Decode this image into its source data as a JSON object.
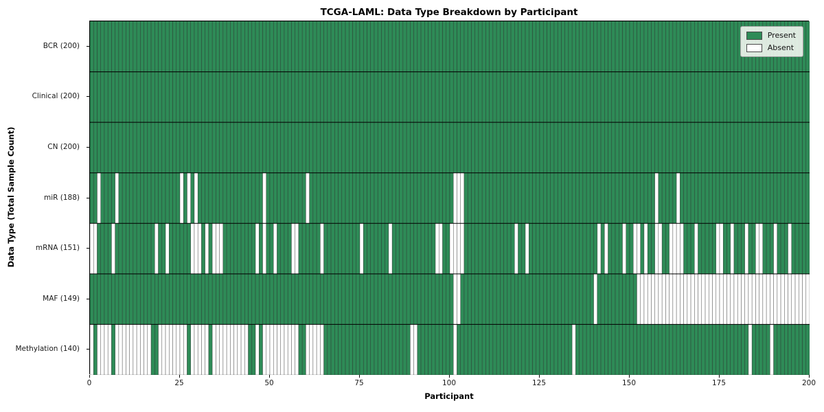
{
  "title": "TCGA-LAML: Data Type Breakdown by Participant",
  "xlabel": "Participant",
  "ylabel": "Data Type (Total Sample Count)",
  "legend": {
    "present_label": "Present",
    "absent_label": "Absent"
  },
  "colors": {
    "present": "#2e8b57",
    "absent": "#ffffff",
    "cell_border": "#2a2a2a",
    "plot_border": "#000000",
    "legend_bg": "#fbfbf5",
    "legend_border": "#a6a6a6"
  },
  "x_ticks": [
    0,
    25,
    50,
    75,
    100,
    125,
    150,
    175,
    200
  ],
  "chart_data": {
    "type": "heatmap",
    "title": "TCGA-LAML: Data Type Breakdown by Participant",
    "xlabel": "Participant",
    "ylabel": "Data Type (Total Sample Count)",
    "xlim": [
      0,
      200
    ],
    "n_participants": 200,
    "legend_position": "upper right",
    "legend_entries": [
      "Present",
      "Absent"
    ],
    "value_encoding": {
      "present": 1,
      "absent": 0
    },
    "grid": "per-cell borders",
    "rows": [
      {
        "label": "BCR (200)",
        "data_type": "BCR",
        "present_count": 200,
        "absent_participants": []
      },
      {
        "label": "Clinical (200)",
        "data_type": "Clinical",
        "present_count": 200,
        "absent_participants": []
      },
      {
        "label": "CN (200)",
        "data_type": "CN",
        "present_count": 200,
        "absent_participants": []
      },
      {
        "label": "miR (188)",
        "data_type": "miR",
        "present_count": 188,
        "absent_participants": [
          2,
          7,
          25,
          27,
          29,
          48,
          60,
          101,
          102,
          103,
          157,
          163
        ]
      },
      {
        "label": "mRNA (151)",
        "data_type": "mRNA",
        "present_count": 151,
        "absent_participants": [
          0,
          1,
          6,
          18,
          21,
          28,
          29,
          30,
          32,
          34,
          35,
          36,
          46,
          48,
          51,
          56,
          57,
          64,
          75,
          83,
          96,
          97,
          100,
          101,
          102,
          103,
          118,
          121,
          141,
          143,
          148,
          151,
          152,
          154,
          157,
          158,
          161,
          162,
          163,
          164,
          168,
          174,
          175,
          178,
          182,
          185,
          186,
          190,
          194
        ]
      },
      {
        "label": "MAF (149)",
        "data_type": "MAF",
        "present_count": 149,
        "absent_participants": [
          101,
          102,
          140,
          152,
          153,
          154,
          155,
          156,
          157,
          158,
          159,
          160,
          161,
          162,
          163,
          164,
          165,
          166,
          167,
          168,
          169,
          170,
          171,
          172,
          173,
          174,
          175,
          176,
          177,
          178,
          179,
          180,
          181,
          182,
          183,
          184,
          185,
          186,
          187,
          188,
          189,
          190,
          191,
          192,
          193,
          194,
          195,
          196,
          197,
          198,
          199
        ]
      },
      {
        "label": "Methylation (140)",
        "data_type": "Methylation",
        "present_count": 140,
        "absent_participants": [
          0,
          2,
          3,
          4,
          5,
          7,
          8,
          9,
          10,
          11,
          12,
          13,
          14,
          15,
          16,
          19,
          20,
          21,
          22,
          23,
          24,
          25,
          26,
          28,
          29,
          30,
          31,
          32,
          34,
          35,
          36,
          37,
          38,
          39,
          40,
          41,
          42,
          43,
          46,
          48,
          49,
          50,
          51,
          52,
          53,
          54,
          55,
          56,
          57,
          60,
          61,
          62,
          63,
          64,
          89,
          90,
          101,
          134,
          183,
          189
        ]
      }
    ]
  }
}
